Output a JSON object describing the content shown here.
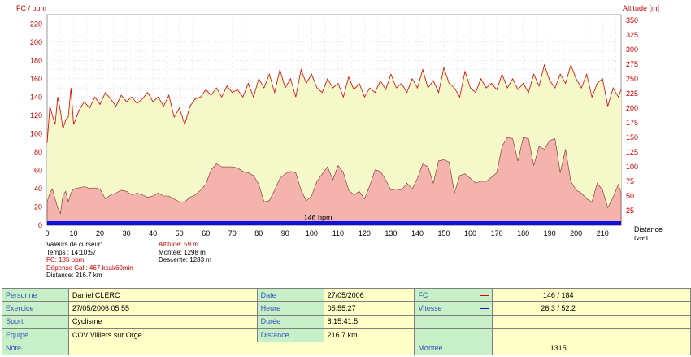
{
  "chart_data": {
    "type": "area",
    "xlabel": "Distance [km]",
    "ylabel_left": "FC / bpm",
    "ylabel_right": "Altitude [m]",
    "xlim": [
      0,
      217
    ],
    "ylim_left": [
      0,
      230
    ],
    "ylim_right": [
      0,
      360
    ],
    "x_ticks": [
      0,
      10,
      20,
      30,
      40,
      50,
      60,
      70,
      80,
      90,
      100,
      110,
      120,
      130,
      140,
      150,
      160,
      170,
      180,
      190,
      200,
      210
    ],
    "y_ticks_left": [
      0,
      20,
      40,
      60,
      80,
      100,
      120,
      140,
      160,
      180,
      200,
      220
    ],
    "y_ticks_right": [
      25,
      50,
      75,
      100,
      125,
      150,
      175,
      200,
      225,
      250,
      275,
      300,
      325,
      350
    ],
    "grid": true,
    "avg_label": "146 bpm",
    "colors": {
      "hr_line": "#dd0000",
      "hr_fill": "#f5f8c8",
      "alt_fill": "#f5b3ad",
      "avg_bar": "#1010dd"
    },
    "series": [
      {
        "name": "FC",
        "x": [
          0,
          1,
          2,
          3,
          4,
          5,
          6,
          7,
          8,
          9,
          10,
          12,
          14,
          16,
          18,
          20,
          22,
          24,
          26,
          28,
          30,
          32,
          34,
          36,
          38,
          40,
          42,
          44,
          46,
          48,
          50,
          52,
          54,
          56,
          58,
          60,
          62,
          64,
          66,
          68,
          70,
          72,
          74,
          76,
          78,
          80,
          82,
          84,
          86,
          88,
          90,
          92,
          94,
          96,
          98,
          100,
          102,
          104,
          106,
          108,
          110,
          112,
          114,
          116,
          118,
          120,
          122,
          124,
          126,
          128,
          130,
          132,
          134,
          136,
          138,
          140,
          142,
          144,
          146,
          148,
          150,
          152,
          154,
          156,
          158,
          160,
          162,
          164,
          166,
          168,
          170,
          172,
          174,
          176,
          178,
          180,
          182,
          184,
          186,
          188,
          190,
          192,
          194,
          196,
          198,
          200,
          202,
          204,
          206,
          208,
          210,
          212,
          214,
          216,
          217
        ],
        "values": [
          90,
          130,
          120,
          110,
          140,
          125,
          105,
          115,
          118,
          150,
          110,
          125,
          135,
          128,
          140,
          132,
          145,
          138,
          130,
          142,
          135,
          140,
          133,
          138,
          145,
          135,
          140,
          130,
          142,
          118,
          128,
          110,
          130,
          138,
          140,
          148,
          142,
          150,
          140,
          152,
          145,
          148,
          140,
          155,
          140,
          160,
          150,
          165,
          145,
          170,
          150,
          160,
          140,
          170,
          155,
          165,
          150,
          145,
          160,
          150,
          155,
          140,
          162,
          148,
          155,
          140,
          150,
          145,
          158,
          148,
          165,
          150,
          155,
          145,
          160,
          150,
          170,
          150,
          158,
          145,
          172,
          155,
          150,
          140,
          168,
          150,
          145,
          160,
          150,
          155,
          148,
          165,
          150,
          160,
          148,
          155,
          145,
          165,
          152,
          175,
          158,
          150,
          165,
          155,
          175,
          160,
          150,
          165,
          140,
          155,
          160,
          130,
          150,
          140,
          148
        ]
      },
      {
        "name": "Altitude",
        "x": [
          0,
          1,
          2,
          3,
          4,
          5,
          6,
          7,
          8,
          9,
          10,
          12,
          14,
          16,
          18,
          20,
          22,
          24,
          26,
          28,
          30,
          32,
          34,
          36,
          38,
          40,
          42,
          44,
          46,
          48,
          50,
          52,
          54,
          56,
          58,
          60,
          62,
          64,
          66,
          68,
          70,
          72,
          74,
          76,
          78,
          80,
          82,
          84,
          86,
          88,
          90,
          92,
          94,
          96,
          98,
          100,
          102,
          104,
          106,
          108,
          110,
          112,
          114,
          116,
          118,
          120,
          122,
          124,
          126,
          128,
          130,
          132,
          134,
          136,
          138,
          140,
          142,
          144,
          146,
          148,
          150,
          152,
          154,
          156,
          158,
          160,
          162,
          164,
          166,
          168,
          170,
          172,
          174,
          176,
          178,
          180,
          182,
          184,
          186,
          188,
          190,
          192,
          194,
          196,
          198,
          200,
          202,
          204,
          206,
          208,
          210,
          212,
          214,
          216,
          217
        ],
        "values": [
          40,
          55,
          62,
          45,
          30,
          20,
          52,
          58,
          40,
          55,
          62,
          64,
          66,
          63,
          64,
          62,
          45,
          52,
          55,
          60,
          58,
          52,
          55,
          52,
          48,
          50,
          55,
          50,
          50,
          45,
          40,
          40,
          48,
          52,
          60,
          70,
          95,
          105,
          100,
          100,
          100,
          98,
          92,
          90,
          85,
          70,
          40,
          42,
          60,
          80,
          88,
          92,
          90,
          60,
          42,
          50,
          75,
          88,
          100,
          78,
          102,
          90,
          60,
          52,
          58,
          45,
          68,
          95,
          92,
          78,
          60,
          62,
          60,
          72,
          62,
          80,
          105,
          100,
          72,
          110,
          112,
          108,
          55,
          85,
          88,
          80,
          72,
          75,
          75,
          82,
          90,
          135,
          150,
          148,
          110,
          150,
          148,
          102,
          135,
          130,
          145,
          148,
          90,
          130,
          75,
          60,
          55,
          45,
          40,
          72,
          60,
          30,
          48,
          70,
          55
        ]
      }
    ]
  },
  "cursor": {
    "title": "Valeurs de curseur:",
    "time": "Temps : 14:10:57",
    "fc": "FC: 135 bpm",
    "calories": "Dépense Cal.: 467 kcal/60min",
    "distance": "Distance: 216.7 km",
    "altitude": "Altitude: 59 m",
    "climb": "Montée: 1298 m",
    "descent": "Descente: 1283 m"
  },
  "info": {
    "personne_label": "Personne",
    "personne": "Daniel CLERC",
    "date_label": "Date",
    "date": "27/05/2006",
    "fc_label": "FC",
    "fc": "146 / 184",
    "exercice_label": "Exercice",
    "exercice": "27/05/2006 05:55",
    "heure_label": "Heure",
    "heure": "05:55:27",
    "vitesse_label": "Vitesse",
    "vitesse": "26.3 / 52.2",
    "sport_label": "Sport",
    "sport": "Cyclisme",
    "duree_label": "Durée",
    "duree": "8:15:41.5",
    "equipe_label": "Equipe",
    "equipe": "COV Villiers sur Orge",
    "distance_label": "Distance",
    "distance": "216.7 km",
    "note_label": "Note",
    "montee_label": "Montée",
    "montee": "1315"
  }
}
